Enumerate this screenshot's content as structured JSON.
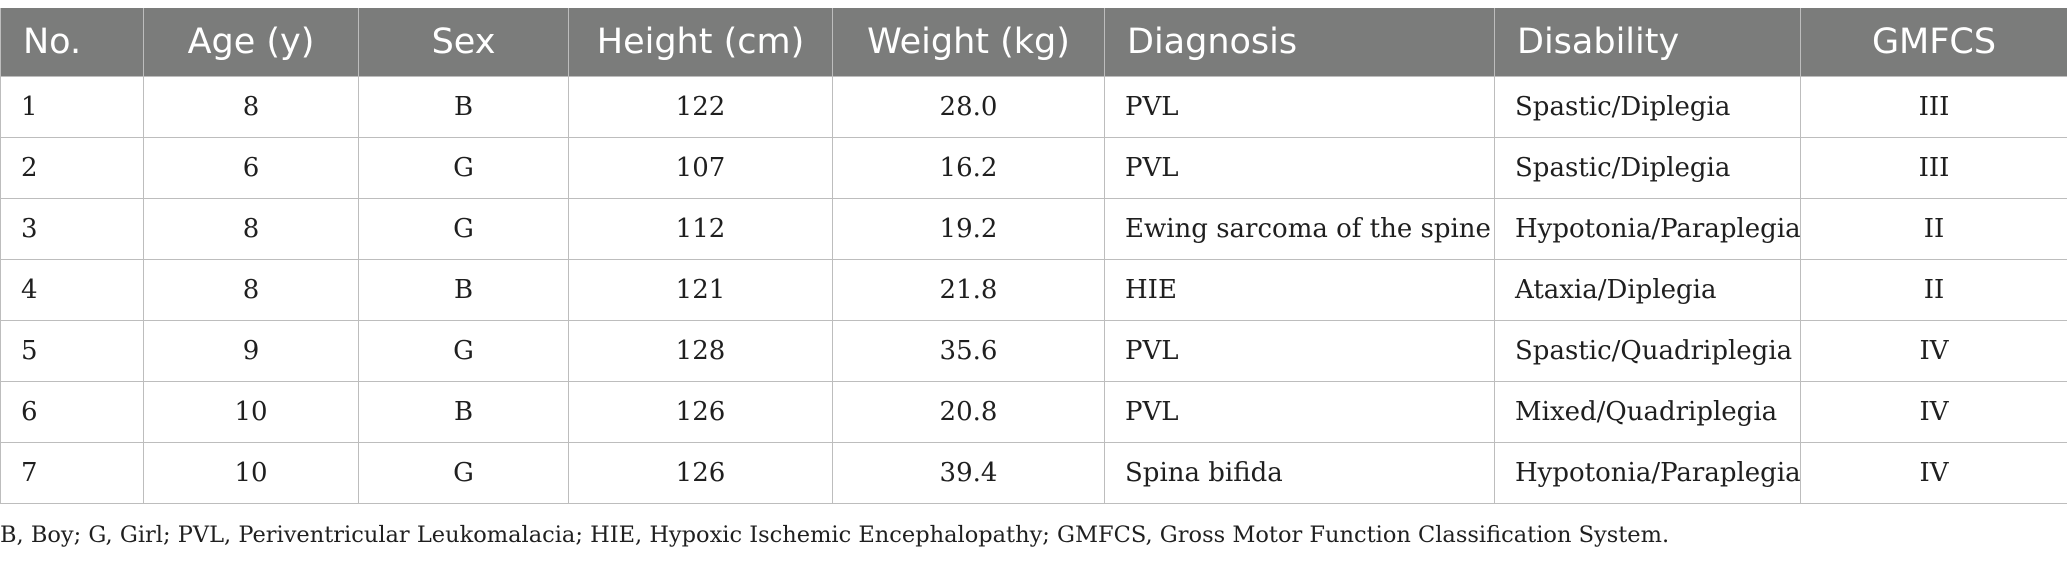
{
  "table": {
    "headers": [
      "No.",
      "Age (y)",
      "Sex",
      "Height (cm)",
      "Weight (kg)",
      "Diagnosis",
      "Disability",
      "GMFCS"
    ],
    "rows": [
      [
        "1",
        "8",
        "B",
        "122",
        "28.0",
        "PVL",
        "Spastic/Diplegia",
        "III"
      ],
      [
        "2",
        "6",
        "G",
        "107",
        "16.2",
        "PVL",
        "Spastic/Diplegia",
        "III"
      ],
      [
        "3",
        "8",
        "G",
        "112",
        "19.2",
        "Ewing sarcoma of the spine",
        "Hypotonia/Paraplegia",
        "II"
      ],
      [
        "4",
        "8",
        "B",
        "121",
        "21.8",
        "HIE",
        "Ataxia/Diplegia",
        "II"
      ],
      [
        "5",
        "9",
        "G",
        "128",
        "35.6",
        "PVL",
        "Spastic/Quadriplegia",
        "IV"
      ],
      [
        "6",
        "10",
        "B",
        "126",
        "20.8",
        "PVL",
        "Mixed/Quadriplegia",
        "IV"
      ],
      [
        "7",
        "10",
        "G",
        "126",
        "39.4",
        "Spina bifida",
        "Hypotonia/Paraplegia",
        "IV"
      ]
    ]
  },
  "footnote": "B, Boy; G, Girl; PVL, Periventricular Leukomalacia; HIE, Hypoxic Ischemic Encephalopathy; GMFCS, Gross Motor Function Classification System."
}
